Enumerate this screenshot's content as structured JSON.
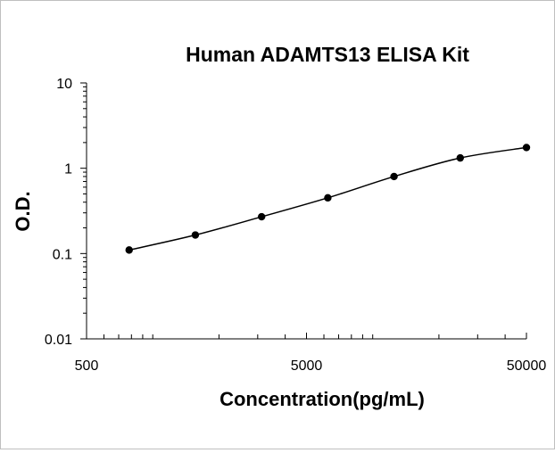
{
  "chart_data": {
    "type": "scatter",
    "title": "Human ADAMTS13 ELISA Kit",
    "xlabel": "Concentration(pg/mL)",
    "ylabel": "O.D.",
    "xscale": "log",
    "yscale": "log",
    "xlim": [
      500,
      50000
    ],
    "ylim": [
      0.01,
      10
    ],
    "x_ticks": [
      {
        "value": 500,
        "label": "500"
      },
      {
        "value": 5000,
        "label": "5000"
      },
      {
        "value": 50000,
        "label": "50000"
      }
    ],
    "y_ticks": [
      {
        "value": 10,
        "label": "10"
      },
      {
        "value": 1,
        "label": "1"
      },
      {
        "value": 0.1,
        "label": "0.1"
      },
      {
        "value": 0.01,
        "label": "0.01"
      }
    ],
    "series": [
      {
        "x": [
          781,
          1562,
          3125,
          6250,
          12500,
          25000,
          50000
        ],
        "y": [
          0.11,
          0.165,
          0.27,
          0.45,
          0.8,
          1.32,
          1.75
        ]
      }
    ],
    "fit_curve": true,
    "grid": false,
    "legend": "none",
    "colors": {
      "marker": "#000000",
      "line": "#000000",
      "axis": "#000000"
    }
  }
}
